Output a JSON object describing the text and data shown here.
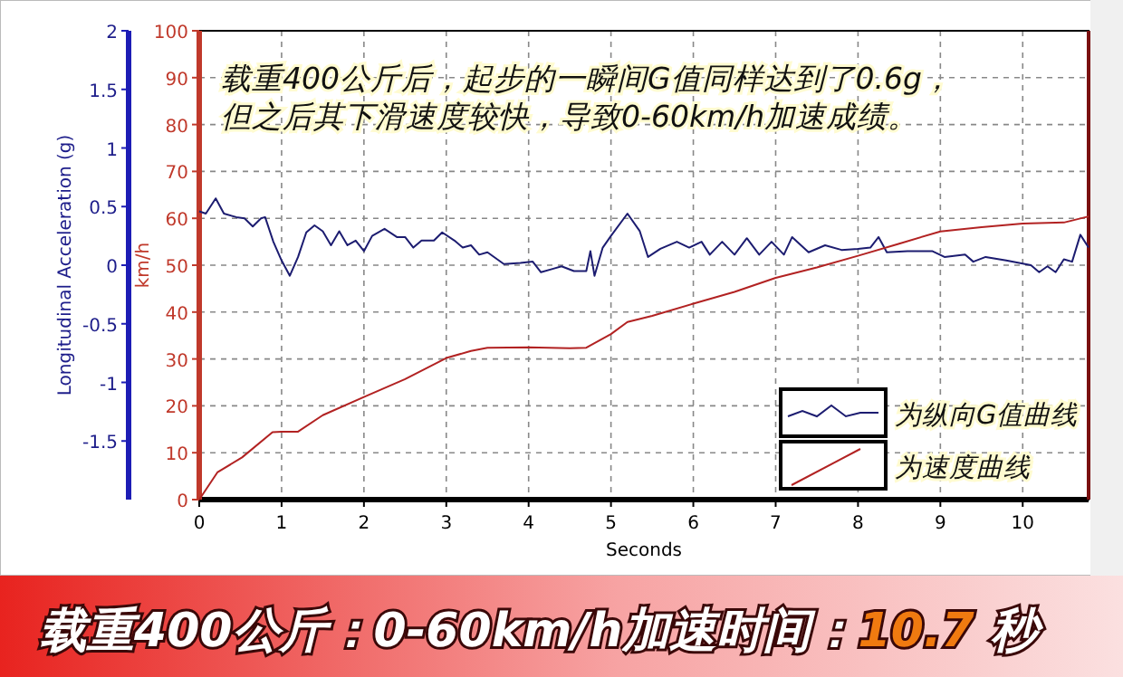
{
  "chart_data": {
    "type": "line",
    "title": "载重400公斤：0-60km/h加速时间：**10.7** 秒",
    "annotations": [
      "载重400公斤后，起步的一瞬间G值同样达到了0.6g，",
      "但之后其下滑速度较快，导致0-60km/h加速成绩。"
    ],
    "xlabel": "Seconds",
    "ylabel": "km/h",
    "y2label": "Longitudinal Acceleration (g)",
    "xlim": [
      0,
      10.8
    ],
    "xticks": [
      0,
      1,
      2,
      3,
      4,
      5,
      6,
      7,
      8,
      9,
      10
    ],
    "ylim": [
      0,
      100
    ],
    "yticks": [
      0,
      10,
      20,
      30,
      40,
      50,
      60,
      70,
      80,
      90,
      100
    ],
    "y2lim": [
      -2,
      2
    ],
    "y2ticks": [
      -1.5,
      -1,
      -0.5,
      0,
      0.5,
      1,
      1.5,
      2
    ],
    "grid": true,
    "legend": "bottom right",
    "series": [
      {
        "name": "为纵向G值曲线",
        "color": "#1c1c70",
        "axis": "y2",
        "x": [
          0,
          0.08,
          0.2,
          0.3,
          0.45,
          0.55,
          0.65,
          0.75,
          0.8,
          0.9,
          1.0,
          1.1,
          1.2,
          1.3,
          1.4,
          1.5,
          1.6,
          1.7,
          1.8,
          1.9,
          2.0,
          2.1,
          2.25,
          2.4,
          2.5,
          2.6,
          2.7,
          2.85,
          2.95,
          3.1,
          3.2,
          3.3,
          3.4,
          3.5,
          3.7,
          3.9,
          4.05,
          4.15,
          4.3,
          4.4,
          4.55,
          4.7,
          4.75,
          4.8,
          4.9,
          5.0,
          5.2,
          5.35,
          5.45,
          5.6,
          5.8,
          5.95,
          6.1,
          6.2,
          6.35,
          6.5,
          6.65,
          6.8,
          6.95,
          7.1,
          7.2,
          7.4,
          7.6,
          7.8,
          8.0,
          8.15,
          8.25,
          8.35,
          8.6,
          8.9,
          9.05,
          9.3,
          9.4,
          9.55,
          9.8,
          10.1,
          10.2,
          10.3,
          10.4,
          10.5,
          10.6,
          10.7,
          10.8
        ],
        "values": [
          0.46,
          0.44,
          0.57,
          0.44,
          0.41,
          0.4,
          0.33,
          0.4,
          0.41,
          0.2,
          0.04,
          -0.09,
          0.07,
          0.28,
          0.34,
          0.29,
          0.17,
          0.29,
          0.17,
          0.21,
          0.12,
          0.25,
          0.31,
          0.24,
          0.24,
          0.15,
          0.21,
          0.21,
          0.28,
          0.21,
          0.15,
          0.17,
          0.09,
          0.11,
          0.01,
          0.02,
          0.03,
          -0.06,
          -0.03,
          -0.01,
          -0.05,
          -0.05,
          0.12,
          -0.09,
          0.15,
          0.25,
          0.44,
          0.29,
          0.07,
          0.14,
          0.2,
          0.15,
          0.2,
          0.09,
          0.2,
          0.09,
          0.23,
          0.09,
          0.2,
          0.09,
          0.24,
          0.11,
          0.17,
          0.13,
          0.14,
          0.15,
          0.24,
          0.11,
          0.12,
          0.12,
          0.07,
          0.09,
          0.03,
          0.07,
          0.04,
          0,
          -0.06,
          -0.01,
          -0.06,
          0.05,
          0.03,
          0.26,
          0.15
        ]
      },
      {
        "name": "为速度曲线",
        "color": "#b22222",
        "x": [
          0,
          0.22,
          0.52,
          0.89,
          1.0,
          1.2,
          1.5,
          2.0,
          2.5,
          3.0,
          3.3,
          3.5,
          4.0,
          4.5,
          4.7,
          5.0,
          5.2,
          5.5,
          6.0,
          6.5,
          7.0,
          7.5,
          8.0,
          8.5,
          9.0,
          9.5,
          10.0,
          10.5,
          10.8
        ],
        "values": [
          0,
          5.8,
          9,
          14.4,
          14.5,
          14.5,
          18,
          21.9,
          25.7,
          30.2,
          31.7,
          32.4,
          32.5,
          32.3,
          32.4,
          35.3,
          37.9,
          39.2,
          41.8,
          44.3,
          47.3,
          49.5,
          52,
          54.6,
          57.2,
          58.1,
          58.9,
          59.1,
          60.4
        ]
      }
    ]
  }
}
